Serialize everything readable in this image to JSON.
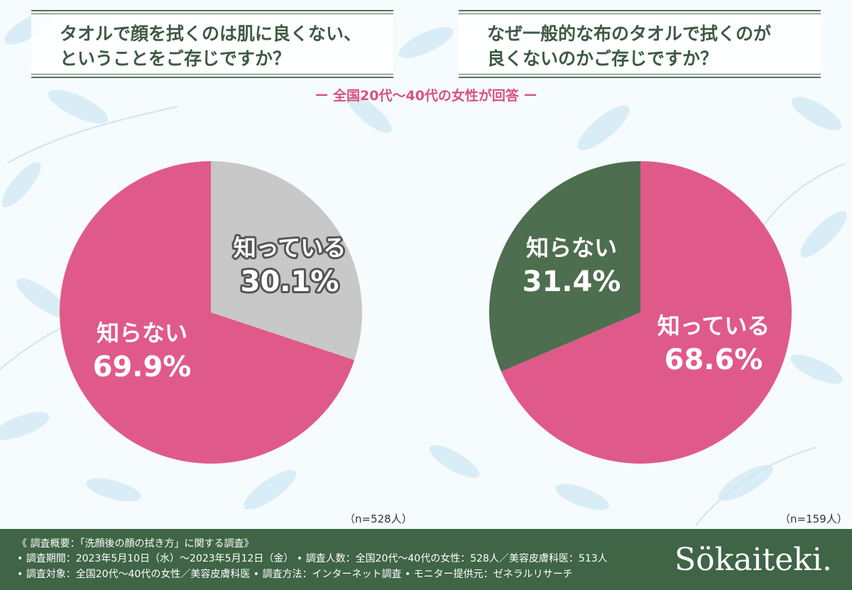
{
  "questions": {
    "q1": "タオルで顔を拭くのは肌に良くない、\nということをご存じですか？",
    "q2": "なぜ一般的な布のタオルで拭くのが\n良くないのかご存じですか？"
  },
  "subtitle": "ー 全国20代〜40代の女性が回答 ー",
  "colors": {
    "pink": "#e05a89",
    "gray": "#c8c8c8",
    "green": "#4d6e4f",
    "footer_bg": "#3f6446",
    "heading": "#3e5a44",
    "accent": "#d9527c"
  },
  "chart_data": [
    {
      "type": "pie",
      "title": "タオルで顔を拭くのは肌に良くない、ということをご存じですか？",
      "slices": [
        {
          "label": "知っている",
          "value": 30.1,
          "value_text": "30.1%",
          "color": "#c8c8c8",
          "text_color": "#555555"
        },
        {
          "label": "知らない",
          "value": 69.9,
          "value_text": "69.9%",
          "color": "#e05a89",
          "text_color": "#e05a89"
        }
      ],
      "n_label": "（n=528人）"
    },
    {
      "type": "pie",
      "title": "なぜ一般的な布のタオルで拭くのが良くないのかご存じですか？",
      "slices": [
        {
          "label": "知っている",
          "value": 68.6,
          "value_text": "68.6%",
          "color": "#e05a89",
          "text_color": "#e05a89"
        },
        {
          "label": "知らない",
          "value": 31.4,
          "value_text": "31.4%",
          "color": "#4d6e4f",
          "text_color": "#4d6e4f"
        }
      ],
      "n_label": "（n=159人）"
    }
  ],
  "footer": {
    "line1": "《 調査概要：「洗顔後の顔の拭き方」に関する調査》",
    "line2": "• 調査期間：2023年5月10日（水）〜2023年5月12日（金）  • 調査人数：全国20代〜40代の女性：528人／美容皮膚科医：513人",
    "line3": "• 調査対象：全国20代〜40代の女性／美容皮膚科医        • 調査方法：インターネット調査    • モニター提供元：ゼネラルリサーチ",
    "brand": "Sökaiteki."
  }
}
